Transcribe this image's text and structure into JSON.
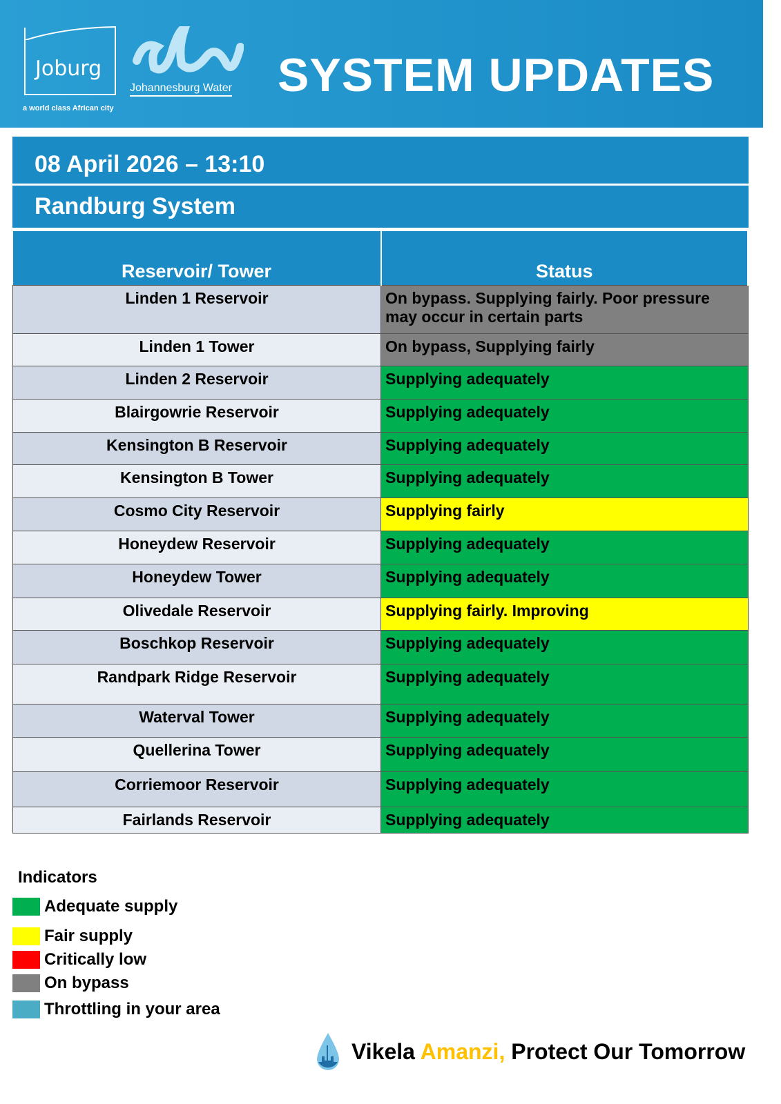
{
  "header": {
    "joburg_logo": "Joburg",
    "tagline": "a world class African city",
    "water_logo": "Johannesburg Water",
    "title": "SYSTEM UPDATES"
  },
  "date": "08 April 2026 – 13:10",
  "system": "Randburg System",
  "table": {
    "columns": [
      "Reservoir/ Tower",
      "Status"
    ],
    "rows": [
      {
        "name": "Linden 1 Reservoir",
        "status": "On bypass. Supplying fairly. Poor pressure may occur in certain parts",
        "color": "#808080"
      },
      {
        "name": "Linden 1 Tower",
        "status": "On bypass, Supplying fairly",
        "color": "#808080"
      },
      {
        "name": "Linden 2 Reservoir",
        "status": "Supplying adequately",
        "color": "#00b050"
      },
      {
        "name": "Blairgowrie Reservoir",
        "status": "Supplying adequately",
        "color": "#00b050"
      },
      {
        "name": "Kensington B Reservoir",
        "status": "Supplying adequately",
        "color": "#00b050"
      },
      {
        "name": "Kensington B Tower",
        "status": "Supplying adequately",
        "color": "#00b050"
      },
      {
        "name": "Cosmo City Reservoir",
        "status": "Supplying fairly",
        "color": "#ffff00"
      },
      {
        "name": "Honeydew Reservoir",
        "status": "Supplying adequately",
        "color": "#00b050"
      },
      {
        "name": "Honeydew Tower",
        "status": "Supplying adequately",
        "color": "#00b050"
      },
      {
        "name": "Olivedale Reservoir",
        "status": "Supplying fairly. Improving",
        "color": "#ffff00"
      },
      {
        "name": "Boschkop Reservoir",
        "status": "Supplying adequately",
        "color": "#00b050"
      },
      {
        "name": "Randpark Ridge Reservoir",
        "status": "Supplying adequately",
        "color": "#00b050"
      },
      {
        "name": "Waterval Tower",
        "status": "Supplying adequately",
        "color": "#00b050"
      },
      {
        "name": "Quellerina Tower",
        "status": "Supplying adequately",
        "color": "#00b050"
      },
      {
        "name": "Corriemoor Reservoir",
        "status": "Supplying adequately",
        "color": "#00b050"
      },
      {
        "name": "Fairlands Reservoir",
        "status": "Supplying adequately",
        "color": "#00b050"
      }
    ]
  },
  "legend": {
    "title": "Indicators",
    "items": [
      {
        "label": "Adequate supply",
        "color": "#00b050"
      },
      {
        "label": "Fair supply",
        "color": "#ffff00"
      },
      {
        "label": "Critically low",
        "color": "#ff0000"
      },
      {
        "label": "On bypass",
        "color": "#808080"
      },
      {
        "label": "Throttling in your area",
        "color": "#4bacc6"
      }
    ]
  },
  "footer": {
    "part1": "Vikela ",
    "part2": "Amanzi,",
    "part3": " Protect Our Tomorrow",
    "accent": "#ffc000",
    "icon": "water-drop-city-icon"
  }
}
